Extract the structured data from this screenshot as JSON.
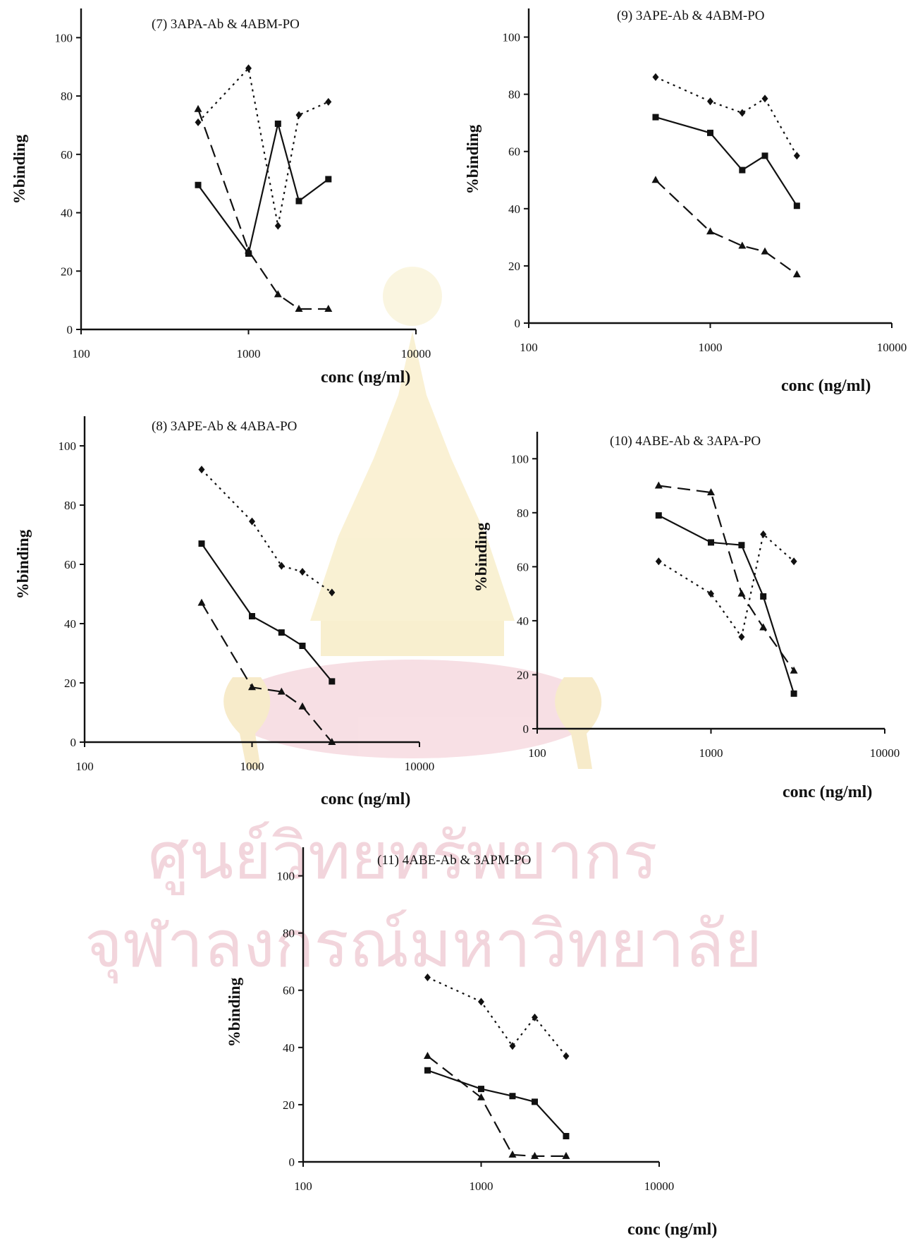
{
  "watermark": {
    "line1": "ศูนย์วิทยทรัพยากร",
    "line2": "จุฬาลงกรณ์มหาวิทยาลัย",
    "color": "#e8b4c0"
  },
  "chart_data": [
    {
      "type": "line",
      "title": "(7)     3APA-Ab & 4ABM-PO",
      "xlabel": "conc (ng/ml)",
      "ylabel": "%binding",
      "xscale": "log",
      "xlim": [
        100,
        10000
      ],
      "ylim": [
        0,
        110
      ],
      "xticks": [
        "100",
        "1000",
        "10000"
      ],
      "yticks": [
        "0",
        "20",
        "40",
        "60",
        "80",
        "100"
      ],
      "grid": false,
      "series": [
        {
          "marker": "square",
          "style": "solid",
          "x": [
            500,
            1000,
            1500,
            2000,
            3000
          ],
          "y": [
            49.5,
            26,
            70.5,
            44,
            51.5
          ]
        },
        {
          "marker": "diamond",
          "style": "dotted",
          "x": [
            500,
            1000,
            1500,
            2000,
            3000
          ],
          "y": [
            71,
            89.5,
            35.5,
            73.5,
            78
          ]
        },
        {
          "marker": "triangle",
          "style": "dashed",
          "x": [
            500,
            1000,
            1500,
            2000,
            3000
          ],
          "y": [
            75.5,
            27,
            12,
            7,
            7
          ]
        }
      ]
    },
    {
      "type": "line",
      "title": "(9)     3APE-Ab & 4ABM-PO",
      "xlabel": "conc (ng/ml)",
      "ylabel": "%binding",
      "xscale": "log",
      "xlim": [
        100,
        10000
      ],
      "ylim": [
        0,
        110
      ],
      "xticks": [
        "100",
        "1000",
        "10000"
      ],
      "yticks": [
        "0",
        "20",
        "40",
        "60",
        "80",
        "100"
      ],
      "grid": false,
      "series": [
        {
          "marker": "square",
          "style": "solid",
          "x": [
            500,
            1000,
            1500,
            2000,
            3000
          ],
          "y": [
            72,
            66.5,
            53.5,
            58.5,
            41
          ]
        },
        {
          "marker": "diamond",
          "style": "dotted",
          "x": [
            500,
            1000,
            1500,
            2000,
            3000
          ],
          "y": [
            86,
            77.5,
            73.5,
            78.5,
            58.5
          ]
        },
        {
          "marker": "triangle",
          "style": "dashed",
          "x": [
            500,
            1000,
            1500,
            2000,
            3000
          ],
          "y": [
            50,
            32,
            27,
            25,
            17
          ]
        }
      ]
    },
    {
      "type": "line",
      "title": "(8)     3APE-Ab & 4ABA-PO",
      "xlabel": "conc (ng/ml)",
      "ylabel": "%binding",
      "xscale": "log",
      "xlim": [
        100,
        10000
      ],
      "ylim": [
        0,
        110
      ],
      "xticks": [
        "100",
        "1000",
        "10000"
      ],
      "yticks": [
        "0",
        "20",
        "40",
        "60",
        "80",
        "100"
      ],
      "grid": false,
      "series": [
        {
          "marker": "square",
          "style": "solid",
          "x": [
            500,
            1000,
            1500,
            2000,
            3000
          ],
          "y": [
            67,
            42.5,
            37,
            32.5,
            20.5
          ]
        },
        {
          "marker": "diamond",
          "style": "dotted",
          "x": [
            500,
            1000,
            1500,
            2000,
            3000
          ],
          "y": [
            92,
            74.5,
            59.5,
            57.5,
            50.5
          ]
        },
        {
          "marker": "triangle",
          "style": "dashed",
          "x": [
            500,
            1000,
            1500,
            2000,
            3000
          ],
          "y": [
            47,
            18.5,
            17,
            12,
            0
          ]
        }
      ]
    },
    {
      "type": "line",
      "title": "(10)    4ABE-Ab & 3APA-PO",
      "xlabel": "conc (ng/ml)",
      "ylabel": "%binding",
      "xscale": "log",
      "xlim": [
        100,
        10000
      ],
      "ylim": [
        0,
        110
      ],
      "xticks": [
        "100",
        "1000",
        "10000"
      ],
      "yticks": [
        "0",
        "20",
        "40",
        "60",
        "80",
        "100"
      ],
      "grid": false,
      "series": [
        {
          "marker": "square",
          "style": "solid",
          "x": [
            500,
            1000,
            1500,
            2000,
            3000
          ],
          "y": [
            79,
            69,
            68,
            49,
            13
          ]
        },
        {
          "marker": "diamond",
          "style": "dotted",
          "x": [
            500,
            1000,
            1500,
            2000,
            3000
          ],
          "y": [
            62,
            50,
            34,
            72,
            62
          ]
        },
        {
          "marker": "triangle",
          "style": "dashed",
          "x": [
            500,
            1000,
            1500,
            2000,
            3000
          ],
          "y": [
            90,
            87.5,
            50,
            37.5,
            21.5
          ]
        }
      ]
    },
    {
      "type": "line",
      "title": "(11)    4ABE-Ab & 3APM-PO",
      "xlabel": "conc (ng/ml)",
      "ylabel": "%binding",
      "xscale": "log",
      "xlim": [
        100,
        10000
      ],
      "ylim": [
        0,
        110
      ],
      "xticks": [
        "100",
        "1000",
        "10000"
      ],
      "yticks": [
        "0",
        "20",
        "40",
        "60",
        "80",
        "100"
      ],
      "grid": false,
      "series": [
        {
          "marker": "square",
          "style": "solid",
          "x": [
            500,
            1000,
            1500,
            2000,
            3000
          ],
          "y": [
            32,
            25.5,
            23,
            21,
            9
          ]
        },
        {
          "marker": "diamond",
          "style": "dotted",
          "x": [
            500,
            1000,
            1500,
            2000,
            3000
          ],
          "y": [
            64.5,
            56,
            40.5,
            50.5,
            37
          ]
        },
        {
          "marker": "triangle",
          "style": "dashed",
          "x": [
            500,
            1000,
            1500,
            2000,
            3000
          ],
          "y": [
            37,
            22.5,
            2.5,
            2,
            2
          ]
        }
      ]
    }
  ]
}
